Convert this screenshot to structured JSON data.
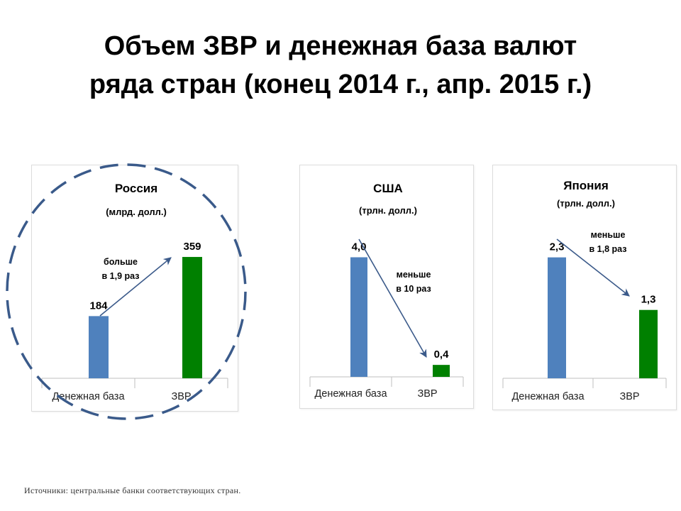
{
  "title": {
    "line1": "Объем ЗВР и денежная база валют",
    "line2": "ряда стран (конец 2014 г., апр. 2015 г.)"
  },
  "colors": {
    "base": "#4f81bd",
    "reserves": "#008000",
    "arrow": "#3b5a8a",
    "ring": "#3a5a8a"
  },
  "chart_data": [
    {
      "type": "bar",
      "title": "Россия",
      "subtitle": "(млрд. долл.)",
      "categories": [
        "Денежная база",
        "ЗВР"
      ],
      "values": [
        184,
        359
      ],
      "value_labels": [
        "184",
        "359"
      ],
      "ylim": [
        0,
        420
      ],
      "annotation": [
        "больше",
        "в 1,9 раз"
      ]
    },
    {
      "type": "bar",
      "title": "США",
      "subtitle": "(трлн. долл.)",
      "categories": [
        "Денежная база",
        "ЗВР"
      ],
      "values": [
        4.0,
        0.4
      ],
      "value_labels": [
        "4,0",
        "0,4"
      ],
      "ylim": [
        0,
        4.7
      ],
      "annotation": [
        "меньше",
        "в 10 раз"
      ]
    },
    {
      "type": "bar",
      "title": "Япония",
      "subtitle": "(трлн. долл.)",
      "categories": [
        "Денежная база",
        "ЗВР"
      ],
      "values": [
        2.3,
        1.3
      ],
      "value_labels": [
        "2,3",
        "1,3"
      ],
      "ylim": [
        0,
        2.7
      ],
      "annotation": [
        "меньше",
        "в 1,8 раз"
      ]
    }
  ],
  "source": "Источники: центральные банки соответствующих стран."
}
